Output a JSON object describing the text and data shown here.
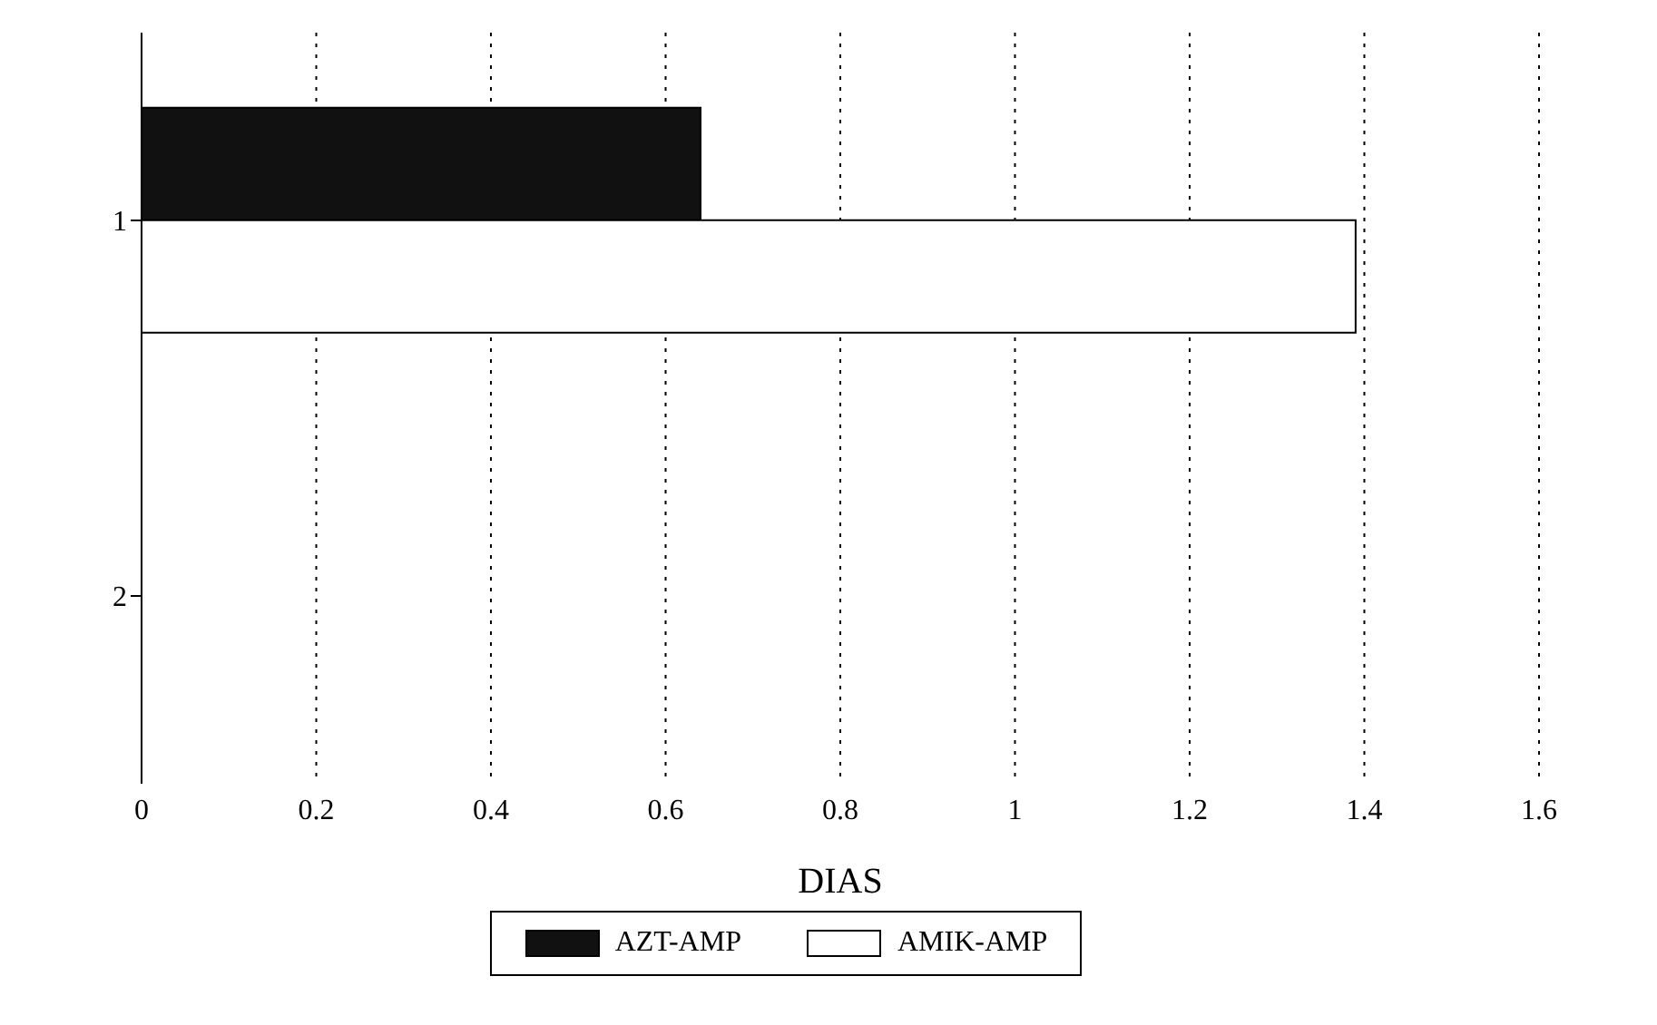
{
  "chart_data": {
    "type": "bar",
    "orientation": "horizontal",
    "xlabel": "DIAS",
    "categories": [
      "1",
      "2"
    ],
    "series": [
      {
        "name": "AZT-AMP",
        "color": "#111111",
        "values": [
          0.64,
          null
        ]
      },
      {
        "name": "AMIK-AMP",
        "color": "#ffffff",
        "values": [
          1.39,
          null
        ]
      }
    ],
    "xlim": [
      0,
      1.6
    ],
    "xticks": [
      0,
      0.2,
      0.4,
      0.6,
      0.8,
      1,
      1.2,
      1.4,
      1.6
    ],
    "grid": "x",
    "legend": "bottom"
  }
}
